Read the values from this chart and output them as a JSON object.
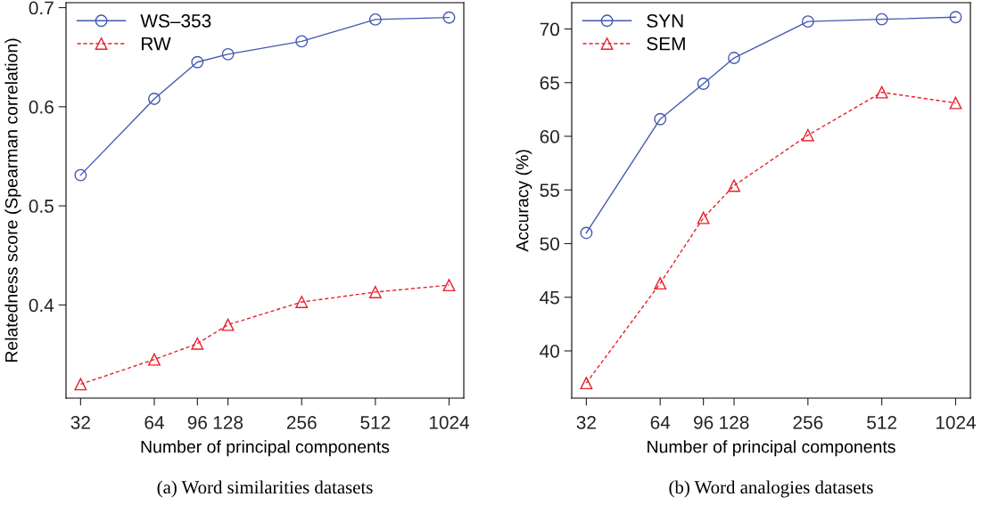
{
  "chart_data": [
    {
      "type": "line",
      "xlabel": "Number of principal components",
      "ylabel": "Relatedness score (Spearman correlation)",
      "annotations": [
        "(a) Word similarities datasets"
      ],
      "log": "x",
      "x": [
        32,
        64,
        96,
        128,
        256,
        512,
        1024
      ],
      "xlim": [
        27.9,
        1176
      ],
      "xticks": [
        32,
        64,
        96,
        128,
        256,
        512,
        1024
      ],
      "ylim": [
        0.306,
        0.705
      ],
      "yticks": [
        0.4,
        0.5,
        0.6,
        0.7
      ],
      "grid": false,
      "legend": "top left",
      "series": [
        {
          "name": "WS–353",
          "color": "#4459b0",
          "marker": "circle",
          "line_style": "solid",
          "values": [
            0.531,
            0.608,
            0.645,
            0.653,
            0.666,
            0.688,
            0.69
          ]
        },
        {
          "name": "RW",
          "color": "#e8202a",
          "marker": "triangle",
          "line_style": "dashed",
          "values": [
            0.32,
            0.345,
            0.361,
            0.38,
            0.403,
            0.413,
            0.42
          ]
        }
      ]
    },
    {
      "type": "line",
      "xlabel": "Number of principal components",
      "ylabel": "Accuracy (%)",
      "annotations": [
        "(b) Word analogies datasets"
      ],
      "log": "x",
      "x": [
        32,
        64,
        96,
        128,
        256,
        512,
        1024
      ],
      "xlim": [
        27.9,
        1176
      ],
      "xticks": [
        32,
        64,
        96,
        128,
        256,
        512,
        1024
      ],
      "ylim": [
        35.6,
        72.45
      ],
      "yticks": [
        40,
        45,
        50,
        55,
        60,
        65,
        70
      ],
      "grid": false,
      "legend": "top left",
      "series": [
        {
          "name": "SYN",
          "color": "#4459b0",
          "marker": "circle",
          "line_style": "solid",
          "values": [
            51.0,
            61.6,
            64.9,
            67.3,
            70.7,
            70.9,
            71.1
          ]
        },
        {
          "name": "SEM",
          "color": "#e8202a",
          "marker": "triangle",
          "line_style": "dashed",
          "values": [
            37.0,
            46.3,
            52.4,
            55.4,
            60.1,
            64.1,
            63.1
          ]
        }
      ]
    }
  ]
}
